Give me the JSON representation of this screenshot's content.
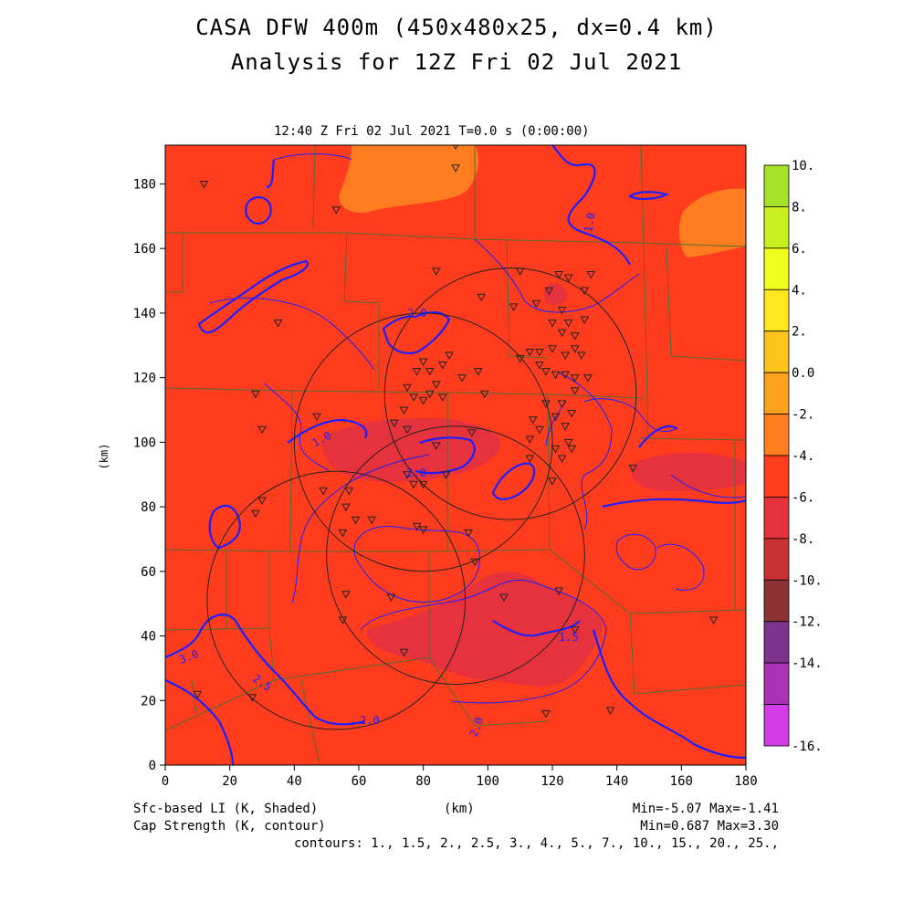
{
  "title": {
    "line1": "CASA DFW 400m (450x480x25, dx=0.4 km)",
    "line2": "Analysis for 12Z Fri 02 Jul 2021"
  },
  "valid_time": "12:40 Z Fri 02 Jul 2021   T=0.0 s (0:00:00)",
  "axes": {
    "x_label": "(km)",
    "y_label": "(km)",
    "x_ticks": [
      "0",
      "20",
      "40",
      "60",
      "80",
      "100",
      "120",
      "140",
      "160",
      "180"
    ],
    "y_ticks": [
      "0",
      "20",
      "40",
      "60",
      "80",
      "100",
      "120",
      "140",
      "160",
      "180"
    ],
    "xlim": [
      0,
      180
    ],
    "ylim": [
      0,
      192
    ]
  },
  "colorbar": {
    "labels": [
      "10.",
      "8.",
      "6.",
      "4.",
      "2.",
      "0.0",
      "-2.",
      "-4.",
      "-6.",
      "-8.",
      "-10.",
      "-12.",
      "-14.",
      "-16."
    ],
    "colors": [
      "#a6e22a",
      "#c8f01e",
      "#f0ff1e",
      "#ffe61e",
      "#ffc31e",
      "#ffa01e",
      "#ff7d1e",
      "#ff3c1e",
      "#e6323c",
      "#c83232",
      "#8c3232",
      "#7d328c",
      "#aa32b4",
      "#d23ce6"
    ]
  },
  "field_colors": {
    "base": "#ff3c1e",
    "orange": "#ff7d1e",
    "low": "#e6323c",
    "contour": "#1e1eff",
    "counties": "#556b2f"
  },
  "footer": {
    "shaded_label": "Sfc-based LI (K, Shaded)",
    "contour_label": "Cap Strength (K, contour)",
    "x_unit": "(km)",
    "shaded_range": "Min=-5.07 Max=-1.41",
    "contour_range": "Min=0.687 Max=3.30",
    "contours": "contours: 1., 1.5, 2., 2.5, 3., 4., 5., 7., 10., 15., 20., 25.,"
  },
  "contour_labels": [
    "1.0",
    "2.0",
    "1.0",
    "2.0",
    "1.5",
    "3.0",
    "2.5",
    "2.0",
    "2.0"
  ],
  "chart_data": {
    "type": "heatmap",
    "shaded_field": "Sfc-based LI (K, Shaded)",
    "shaded_min": -5.07,
    "shaded_max": -1.41,
    "contour_field": "Cap Strength (K, contour)",
    "contour_min": 0.687,
    "contour_max": 3.3,
    "contour_levels": [
      1,
      1.5,
      2,
      2.5,
      3,
      4,
      5,
      7,
      10,
      15,
      20,
      25
    ],
    "colorbar_levels": [
      10,
      8,
      6,
      4,
      2,
      0,
      -2,
      -4,
      -6,
      -8,
      -10,
      -12,
      -14,
      -16
    ],
    "radars": [
      {
        "x": 107,
        "y": 115,
        "r_km": 39
      },
      {
        "x": 80,
        "y": 100,
        "r_km": 40
      },
      {
        "x": 53,
        "y": 51,
        "r_km": 40
      },
      {
        "x": 90,
        "y": 65,
        "r_km": 40
      }
    ],
    "stations": [
      [
        90,
        192
      ],
      [
        90,
        185
      ],
      [
        12,
        180
      ],
      [
        53,
        172
      ],
      [
        84,
        153
      ],
      [
        110,
        153
      ],
      [
        122,
        152
      ],
      [
        132,
        152
      ],
      [
        125,
        151
      ],
      [
        119,
        147
      ],
      [
        130,
        147
      ],
      [
        98,
        145
      ],
      [
        108,
        142
      ],
      [
        115,
        143
      ],
      [
        123,
        141
      ],
      [
        120,
        137
      ],
      [
        125,
        137
      ],
      [
        130,
        138
      ],
      [
        35,
        137
      ],
      [
        123,
        134
      ],
      [
        127,
        133
      ],
      [
        120,
        129
      ],
      [
        127,
        129
      ],
      [
        113,
        128
      ],
      [
        116,
        128
      ],
      [
        124,
        127
      ],
      [
        129,
        127
      ],
      [
        116,
        124
      ],
      [
        110,
        126
      ],
      [
        88,
        127
      ],
      [
        80,
        125
      ],
      [
        86,
        124
      ],
      [
        82,
        122
      ],
      [
        78,
        122
      ],
      [
        92,
        120
      ],
      [
        118,
        122
      ],
      [
        121,
        121
      ],
      [
        124,
        121
      ],
      [
        97,
        122
      ],
      [
        127,
        120
      ],
      [
        131,
        120
      ],
      [
        84,
        118
      ],
      [
        127,
        116
      ],
      [
        75,
        117
      ],
      [
        82,
        115
      ],
      [
        28,
        115
      ],
      [
        99,
        115
      ],
      [
        86,
        114
      ],
      [
        77,
        114
      ],
      [
        80,
        113
      ],
      [
        118,
        112
      ],
      [
        123,
        112
      ],
      [
        126,
        109
      ],
      [
        121,
        108
      ],
      [
        114,
        107
      ],
      [
        116,
        104
      ],
      [
        124,
        105
      ],
      [
        74,
        110
      ],
      [
        47,
        108
      ],
      [
        71,
        106
      ],
      [
        75,
        104
      ],
      [
        30,
        104
      ],
      [
        113,
        101
      ],
      [
        84,
        99
      ],
      [
        125,
        100
      ],
      [
        95,
        103
      ],
      [
        126,
        98
      ],
      [
        121,
        98
      ],
      [
        113,
        95
      ],
      [
        123,
        95
      ],
      [
        145,
        92
      ],
      [
        75,
        90
      ],
      [
        87,
        90
      ],
      [
        77,
        87
      ],
      [
        80,
        87
      ],
      [
        57,
        85
      ],
      [
        49,
        85
      ],
      [
        120,
        88
      ],
      [
        30,
        82
      ],
      [
        56,
        80
      ],
      [
        28,
        78
      ],
      [
        64,
        76
      ],
      [
        59,
        76
      ],
      [
        78,
        74
      ],
      [
        80,
        73
      ],
      [
        55,
        72
      ],
      [
        94,
        72
      ],
      [
        96,
        63
      ],
      [
        105,
        52
      ],
      [
        122,
        54
      ],
      [
        70,
        52
      ],
      [
        56,
        53
      ],
      [
        170,
        45
      ],
      [
        55,
        45
      ],
      [
        127,
        42
      ],
      [
        74,
        35
      ],
      [
        10,
        22
      ],
      [
        27,
        21
      ],
      [
        138,
        17
      ],
      [
        118,
        16
      ]
    ]
  }
}
